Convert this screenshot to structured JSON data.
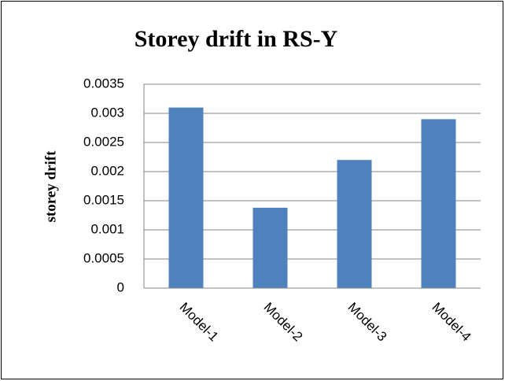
{
  "chart_data": {
    "type": "bar",
    "title": "Storey drift in RS-Y",
    "y_label": "storey drift",
    "categories": [
      "Model-1",
      "Model-2",
      "Model-3",
      "Model-4"
    ],
    "values": [
      0.0031,
      0.00138,
      0.0022,
      0.0029
    ],
    "color": "#4f81bd",
    "ylim": [
      0,
      0.0035
    ],
    "yticks": [
      0,
      0.0005,
      0.001,
      0.0015,
      0.002,
      0.0025,
      0.003,
      0.0035
    ],
    "grid": true
  }
}
